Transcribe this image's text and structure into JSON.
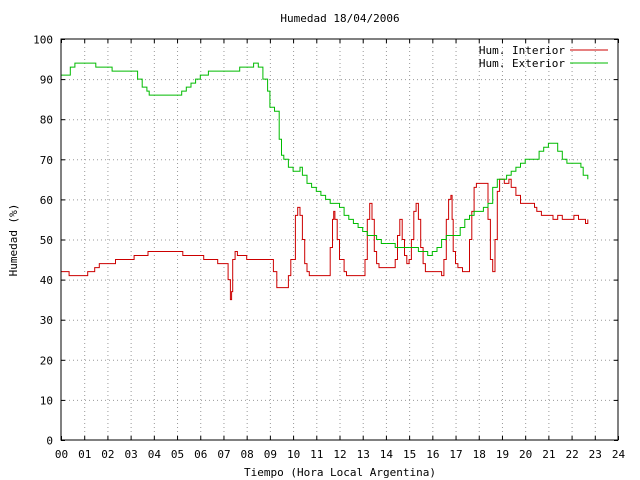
{
  "chart_data": {
    "type": "line",
    "title": "Humedad 18/04/2006",
    "xlabel": "Tiempo (Hora Local Argentina)",
    "ylabel": "Humedad (%)",
    "xlim": [
      0,
      24
    ],
    "ylim": [
      0,
      100
    ],
    "grid": true,
    "legend_position": "top-right",
    "x_ticks": [
      "00",
      "01",
      "02",
      "03",
      "04",
      "05",
      "06",
      "07",
      "08",
      "09",
      "10",
      "11",
      "12",
      "13",
      "14",
      "15",
      "16",
      "17",
      "18",
      "19",
      "20",
      "21",
      "22",
      "23",
      "24"
    ],
    "y_ticks": [
      "0",
      "10",
      "20",
      "30",
      "40",
      "50",
      "60",
      "70",
      "80",
      "90",
      "100"
    ],
    "series": [
      {
        "name": "Hum. Interior",
        "color": "#cc0000",
        "points": [
          [
            0.0,
            42
          ],
          [
            0.3,
            42
          ],
          [
            0.35,
            41
          ],
          [
            1.1,
            41
          ],
          [
            1.15,
            42
          ],
          [
            1.4,
            42
          ],
          [
            1.45,
            43
          ],
          [
            1.6,
            43
          ],
          [
            1.65,
            44
          ],
          [
            2.3,
            44
          ],
          [
            2.35,
            45
          ],
          [
            3.1,
            45
          ],
          [
            3.15,
            46
          ],
          [
            3.7,
            46
          ],
          [
            3.75,
            47
          ],
          [
            5.2,
            47
          ],
          [
            5.25,
            46
          ],
          [
            6.1,
            46
          ],
          [
            6.15,
            45
          ],
          [
            6.7,
            45
          ],
          [
            6.75,
            44
          ],
          [
            7.1,
            44
          ],
          [
            7.2,
            40
          ],
          [
            7.3,
            35
          ],
          [
            7.35,
            37
          ],
          [
            7.4,
            45
          ],
          [
            7.5,
            47
          ],
          [
            7.6,
            46
          ],
          [
            8.0,
            45
          ],
          [
            8.4,
            45
          ],
          [
            9.0,
            45
          ],
          [
            9.15,
            42
          ],
          [
            9.3,
            38
          ],
          [
            9.7,
            38
          ],
          [
            9.8,
            41
          ],
          [
            9.9,
            45
          ],
          [
            10.1,
            56
          ],
          [
            10.2,
            58
          ],
          [
            10.3,
            56
          ],
          [
            10.4,
            50
          ],
          [
            10.5,
            44
          ],
          [
            10.6,
            42
          ],
          [
            10.7,
            41
          ],
          [
            11.5,
            41
          ],
          [
            11.6,
            48
          ],
          [
            11.7,
            55
          ],
          [
            11.75,
            57
          ],
          [
            11.8,
            55
          ],
          [
            11.9,
            50
          ],
          [
            12.0,
            45
          ],
          [
            12.2,
            42
          ],
          [
            12.3,
            41
          ],
          [
            13.0,
            41
          ],
          [
            13.1,
            45
          ],
          [
            13.2,
            55
          ],
          [
            13.3,
            59
          ],
          [
            13.4,
            55
          ],
          [
            13.5,
            47
          ],
          [
            13.6,
            44
          ],
          [
            13.7,
            43
          ],
          [
            14.3,
            43
          ],
          [
            14.4,
            45
          ],
          [
            14.5,
            51
          ],
          [
            14.6,
            55
          ],
          [
            14.7,
            50
          ],
          [
            14.8,
            46
          ],
          [
            14.9,
            44
          ],
          [
            15.0,
            45
          ],
          [
            15.1,
            50
          ],
          [
            15.2,
            57
          ],
          [
            15.3,
            59
          ],
          [
            15.4,
            55
          ],
          [
            15.5,
            48
          ],
          [
            15.6,
            44
          ],
          [
            15.7,
            42
          ],
          [
            16.4,
            41
          ],
          [
            16.5,
            45
          ],
          [
            16.6,
            55
          ],
          [
            16.7,
            60
          ],
          [
            16.8,
            61
          ],
          [
            16.85,
            55
          ],
          [
            16.9,
            47
          ],
          [
            17.0,
            44
          ],
          [
            17.1,
            43
          ],
          [
            17.3,
            42
          ],
          [
            17.5,
            42
          ],
          [
            17.6,
            50
          ],
          [
            17.7,
            57
          ],
          [
            17.8,
            63
          ],
          [
            17.9,
            64
          ],
          [
            18.3,
            64
          ],
          [
            18.4,
            55
          ],
          [
            18.5,
            45
          ],
          [
            18.6,
            42
          ],
          [
            18.7,
            50
          ],
          [
            18.8,
            62
          ],
          [
            18.9,
            65
          ],
          [
            19.1,
            64
          ],
          [
            19.3,
            65
          ],
          [
            19.4,
            63
          ],
          [
            19.6,
            61
          ],
          [
            19.8,
            59
          ],
          [
            20.3,
            59
          ],
          [
            20.4,
            58
          ],
          [
            20.5,
            57
          ],
          [
            20.6,
            57
          ],
          [
            20.7,
            56
          ],
          [
            21.0,
            56
          ],
          [
            21.2,
            55
          ],
          [
            21.4,
            56
          ],
          [
            21.6,
            55
          ],
          [
            22.0,
            55
          ],
          [
            22.1,
            56
          ],
          [
            22.2,
            56
          ],
          [
            22.3,
            55
          ],
          [
            22.5,
            55
          ],
          [
            22.6,
            54
          ],
          [
            22.7,
            55
          ]
        ]
      },
      {
        "name": "Hum. Exterior",
        "color": "#00bb00",
        "points": [
          [
            0.0,
            91
          ],
          [
            0.35,
            91
          ],
          [
            0.4,
            93
          ],
          [
            0.6,
            94
          ],
          [
            1.4,
            94
          ],
          [
            1.5,
            93
          ],
          [
            2.1,
            93
          ],
          [
            2.2,
            92
          ],
          [
            3.1,
            92
          ],
          [
            3.3,
            90
          ],
          [
            3.5,
            88
          ],
          [
            3.7,
            87
          ],
          [
            3.8,
            86
          ],
          [
            5.0,
            86
          ],
          [
            5.2,
            87
          ],
          [
            5.4,
            88
          ],
          [
            5.6,
            89
          ],
          [
            5.8,
            90
          ],
          [
            6.0,
            91
          ],
          [
            6.2,
            91
          ],
          [
            6.35,
            92
          ],
          [
            7.6,
            92
          ],
          [
            7.7,
            93
          ],
          [
            8.2,
            93
          ],
          [
            8.3,
            94
          ],
          [
            8.5,
            93
          ],
          [
            8.7,
            90
          ],
          [
            8.9,
            87
          ],
          [
            9.0,
            83
          ],
          [
            9.2,
            82
          ],
          [
            9.4,
            75
          ],
          [
            9.5,
            71
          ],
          [
            9.6,
            70
          ],
          [
            9.8,
            68
          ],
          [
            10.0,
            67
          ],
          [
            10.2,
            67
          ],
          [
            10.3,
            68
          ],
          [
            10.4,
            66
          ],
          [
            10.6,
            64
          ],
          [
            10.8,
            63
          ],
          [
            11.0,
            62
          ],
          [
            11.2,
            61
          ],
          [
            11.4,
            60
          ],
          [
            11.6,
            59
          ],
          [
            11.8,
            59
          ],
          [
            12.0,
            58
          ],
          [
            12.2,
            56
          ],
          [
            12.4,
            55
          ],
          [
            12.6,
            54
          ],
          [
            12.8,
            53
          ],
          [
            13.0,
            52
          ],
          [
            13.2,
            51
          ],
          [
            13.4,
            51
          ],
          [
            13.6,
            50
          ],
          [
            13.8,
            49
          ],
          [
            14.0,
            49
          ],
          [
            14.2,
            49
          ],
          [
            14.4,
            48
          ],
          [
            14.6,
            48
          ],
          [
            14.8,
            48
          ],
          [
            15.0,
            48
          ],
          [
            15.2,
            48
          ],
          [
            15.4,
            47
          ],
          [
            15.6,
            47
          ],
          [
            15.8,
            46
          ],
          [
            16.0,
            47
          ],
          [
            16.2,
            48
          ],
          [
            16.4,
            50
          ],
          [
            16.6,
            51
          ],
          [
            16.8,
            51
          ],
          [
            17.0,
            51
          ],
          [
            17.2,
            53
          ],
          [
            17.4,
            55
          ],
          [
            17.6,
            56
          ],
          [
            17.8,
            57
          ],
          [
            18.0,
            57
          ],
          [
            18.2,
            58
          ],
          [
            18.4,
            59
          ],
          [
            18.6,
            63
          ],
          [
            18.8,
            65
          ],
          [
            19.0,
            65
          ],
          [
            19.2,
            66
          ],
          [
            19.4,
            67
          ],
          [
            19.6,
            68
          ],
          [
            19.8,
            69
          ],
          [
            20.0,
            70
          ],
          [
            20.4,
            70
          ],
          [
            20.6,
            72
          ],
          [
            20.8,
            73
          ],
          [
            21.0,
            74
          ],
          [
            21.2,
            74
          ],
          [
            21.4,
            72
          ],
          [
            21.6,
            70
          ],
          [
            21.8,
            69
          ],
          [
            22.2,
            69
          ],
          [
            22.4,
            68
          ],
          [
            22.5,
            66
          ],
          [
            22.7,
            65
          ]
        ]
      }
    ]
  }
}
